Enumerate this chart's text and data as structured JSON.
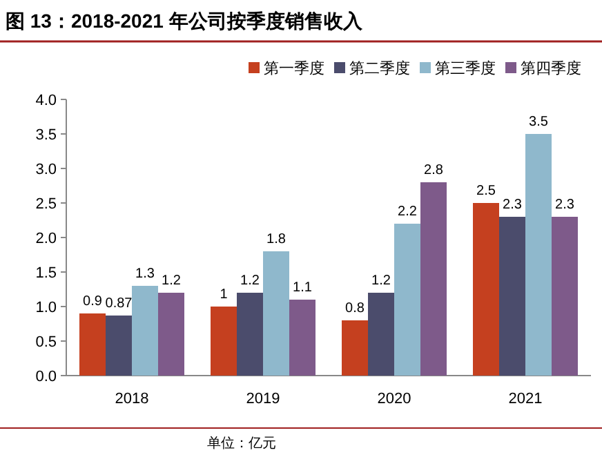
{
  "chart_data": {
    "type": "bar",
    "title": "图 13：2018-2021 年公司按季度销售收入",
    "categories": [
      "2018",
      "2019",
      "2020",
      "2021"
    ],
    "series": [
      {
        "name": "第一季度",
        "color": "#c5401f",
        "values": [
          0.9,
          1,
          0.8,
          2.5
        ]
      },
      {
        "name": "第二季度",
        "color": "#4b4c6c",
        "values": [
          0.87,
          1.2,
          1.2,
          2.3
        ]
      },
      {
        "name": "第三季度",
        "color": "#8fb8cc",
        "values": [
          1.3,
          1.8,
          2.2,
          3.5
        ]
      },
      {
        "name": "第四季度",
        "color": "#7e5a8a",
        "values": [
          1.2,
          1.1,
          2.8,
          2.3
        ]
      }
    ],
    "ylim": [
      0,
      4
    ],
    "yticks": [
      {
        "value": 0,
        "label": "0.0"
      },
      {
        "value": 0.5,
        "label": "0.5"
      },
      {
        "value": 1,
        "label": "1.0"
      },
      {
        "value": 1.5,
        "label": "1.5"
      },
      {
        "value": 2,
        "label": "2.0"
      },
      {
        "value": 2.5,
        "label": "2.5"
      },
      {
        "value": 3,
        "label": "3.0"
      },
      {
        "value": 3.5,
        "label": "3.5"
      },
      {
        "value": 4,
        "label": "4.0"
      }
    ],
    "data_labels": true,
    "legend": "top right",
    "annotations": [
      "单位：亿元"
    ]
  }
}
